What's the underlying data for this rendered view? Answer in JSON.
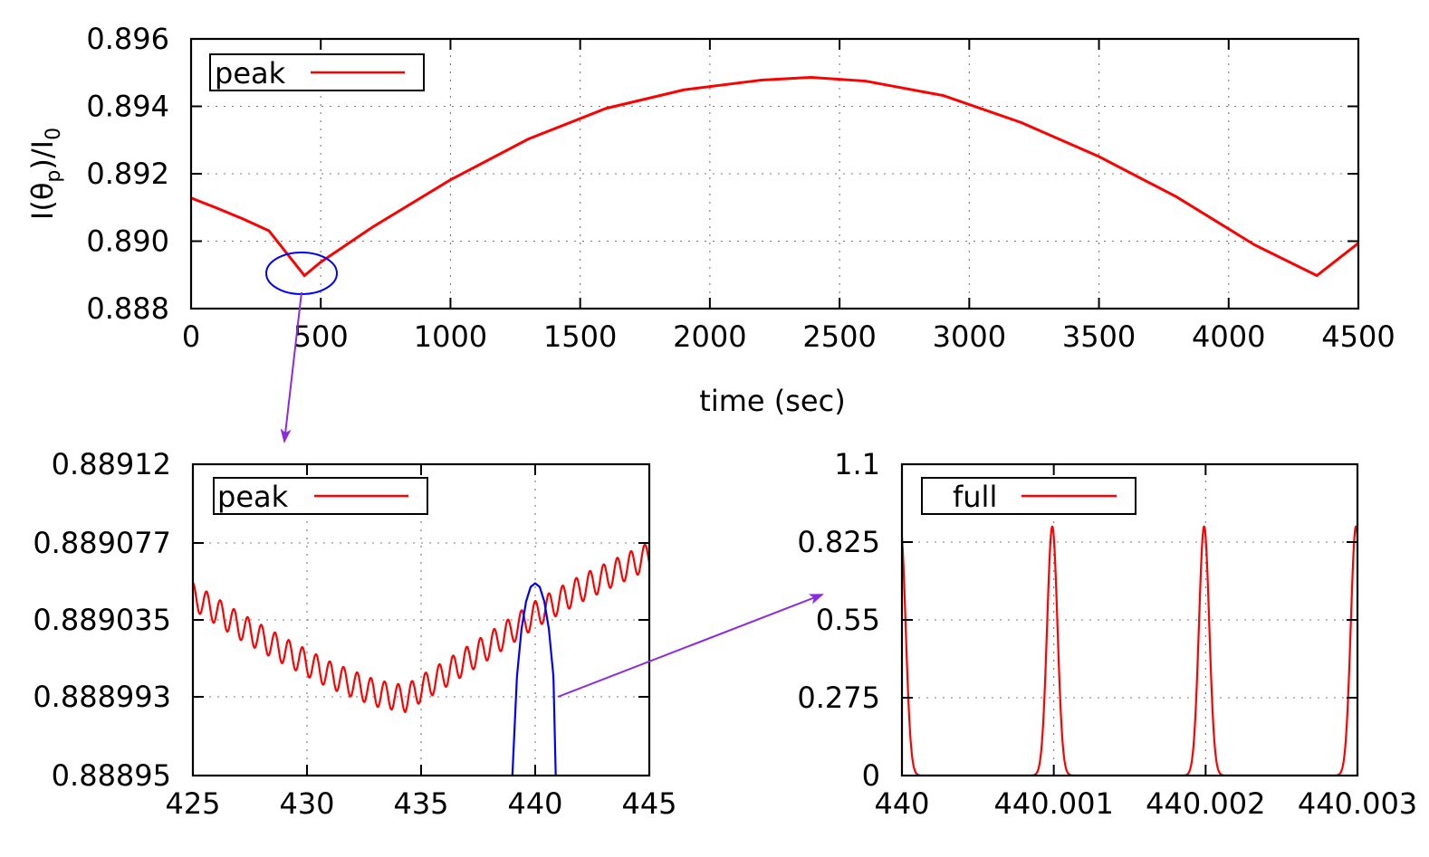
{
  "chart_data": [
    {
      "id": "top",
      "type": "line",
      "xlabel": "time (sec)",
      "ylabel": "I(θ_p)/I_0",
      "xlim": [
        0,
        4500
      ],
      "ylim": [
        0.888,
        0.896
      ],
      "xticks": [
        0,
        500,
        1000,
        1500,
        2000,
        2500,
        3000,
        3500,
        4000,
        4500
      ],
      "yticks": [
        0.888,
        0.89,
        0.892,
        0.894,
        0.896
      ],
      "xtick_labels": [
        "0",
        "500",
        "1000",
        "1500",
        "2000",
        "2500",
        "3000",
        "3500",
        "4000",
        "4500"
      ],
      "ytick_labels": [
        "0.888",
        "0.890",
        "0.892",
        "0.894",
        "0.896"
      ],
      "grid": true,
      "legend_position": "top-left",
      "series": [
        {
          "name": "peak",
          "color": "#ff0000",
          "x": [
            0,
            100,
            200,
            300,
            437,
            500,
            700,
            1000,
            1300,
            1600,
            1900,
            2200,
            2390,
            2600,
            2900,
            3200,
            3500,
            3800,
            4100,
            4340,
            4500
          ],
          "y": [
            0.89128,
            0.89098,
            0.89066,
            0.89031,
            0.88898,
            0.88938,
            0.89042,
            0.89182,
            0.89303,
            0.89394,
            0.89449,
            0.89478,
            0.89486,
            0.89475,
            0.89432,
            0.89352,
            0.89251,
            0.89131,
            0.88989,
            0.88898,
            0.88994
          ]
        }
      ]
    },
    {
      "id": "zoom-peak",
      "type": "line",
      "xlabel": "",
      "ylabel": "",
      "xlim": [
        425,
        445
      ],
      "ylim": [
        0.88895,
        0.88912
      ],
      "xticks": [
        425,
        430,
        435,
        440,
        445
      ],
      "yticks": [
        0.88895,
        0.888993,
        0.889035,
        0.889077,
        0.88912
      ],
      "xtick_labels": [
        "425",
        "430",
        "435",
        "440",
        "445"
      ],
      "ytick_labels": [
        "0.88895",
        "0.888993",
        "0.889035",
        "0.889077",
        "0.88912"
      ],
      "grid": true,
      "legend_position": "top-left",
      "trend": {
        "x": [
          425,
          427,
          429,
          431,
          433,
          434.3,
          436,
          438,
          440,
          442,
          445
        ],
        "y": [
          0.889048,
          0.889032,
          0.889018,
          0.889005,
          0.888995,
          0.888992,
          0.889005,
          0.889021,
          0.889038,
          0.889052,
          0.88907
        ]
      },
      "oscillation_period": 0.6,
      "oscillation_amplitude": 7.3e-06,
      "series": [
        {
          "name": "peak",
          "color": "#ff0000"
        }
      ],
      "highlight_curve": {
        "color": "#0000ff",
        "x": [
          439.0,
          439.2,
          439.4,
          439.6,
          439.8,
          440.0,
          440.2,
          440.4,
          440.6,
          440.8,
          440.9
        ],
        "y": [
          0.88895,
          0.889004,
          0.88903,
          0.889045,
          0.889053,
          0.889055,
          0.889053,
          0.889045,
          0.88903,
          0.889004,
          0.88895
        ]
      }
    },
    {
      "id": "zoom-full",
      "type": "line",
      "xlabel": "",
      "ylabel": "",
      "xlim": [
        440,
        440.003
      ],
      "ylim": [
        0,
        1.1
      ],
      "xticks": [
        440,
        440.001,
        440.002,
        440.003
      ],
      "yticks": [
        0,
        0.275,
        0.55,
        0.825,
        1.1
      ],
      "xtick_labels": [
        "440",
        "440.001",
        "440.002",
        "440.003"
      ],
      "ytick_labels": [
        "0",
        "0.275",
        "0.55",
        "0.825",
        "1.1"
      ],
      "grid": true,
      "legend_position": "top-left",
      "peak_centers": [
        439.99999,
        440.00099,
        440.00199,
        440.00299
      ],
      "peak_height": 0.88,
      "peak_width": 4.8e-05,
      "series": [
        {
          "name": "full",
          "color": "#ff0000"
        }
      ]
    }
  ],
  "annotations": {
    "arrow_color": "#8a2be2",
    "ellipse_color": "#0000ff"
  }
}
